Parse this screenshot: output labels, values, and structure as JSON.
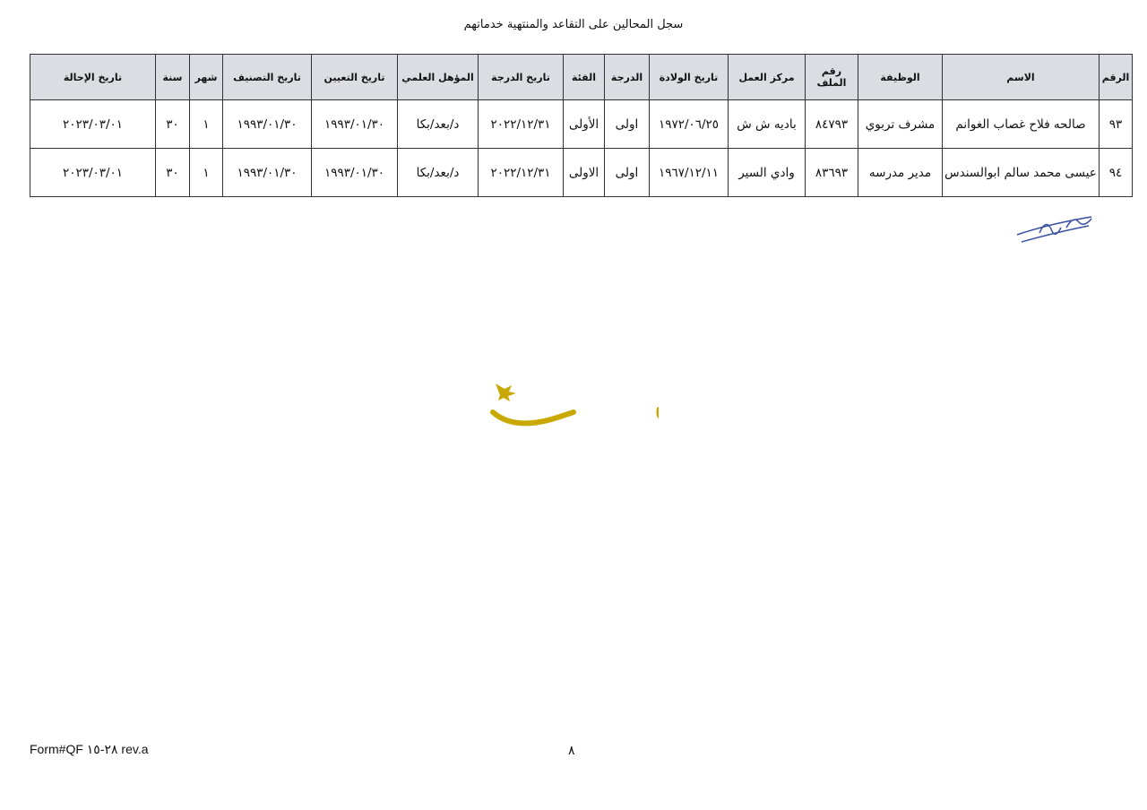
{
  "title": "سجل المحالين على التقاعد والمنتهية خدماتهم",
  "table": {
    "headers": [
      "الرقم",
      "الاسم",
      "الوظيفة",
      "رقم الملف",
      "مركز العمل",
      "تاريخ الولادة",
      "الدرجة",
      "الفئة",
      "تاريخ الدرجة",
      "المؤهل العلمي",
      "تاريخ التعيين",
      "تاريخ التصنيف",
      "شهر",
      "سنة",
      "تاريخ الإحالة"
    ],
    "rows": [
      [
        "٩٣",
        "صالحه فلاح غصاب الغوانم",
        "مشرف تربوي",
        "٨٤٧٩٣",
        "باديه ش ش",
        "١٩٧٢/٠٦/٢٥",
        "اولى",
        "الأولى",
        "٢٠٢٢/١٢/٣١",
        "د/بعد/بكا",
        "١٩٩٣/٠١/٣٠",
        "١٩٩٣/٠١/٣٠",
        "١",
        "٣٠",
        "٢٠٢٣/٠٣/٠١"
      ],
      [
        "٩٤",
        "عيسى محمد سالم ابوالسندس",
        "مدير مدرسه",
        "٨٣٦٩٣",
        "وادي السير",
        "١٩٦٧/١٢/١١",
        "اولى",
        "الاولى",
        "٢٠٢٢/١٢/٣١",
        "د/بعد/بكا",
        "١٩٩٣/٠١/٣٠",
        "١٩٩٣/٠١/٣٠",
        "١",
        "٣٠",
        "٢٠٢٣/٠٣/٠١"
      ]
    ]
  },
  "watermark": {
    "text": "عمون",
    "color": "#c9a800"
  },
  "footer": {
    "form": "Form#QF ٢٨-١٥ rev.a",
    "page": "٨"
  }
}
